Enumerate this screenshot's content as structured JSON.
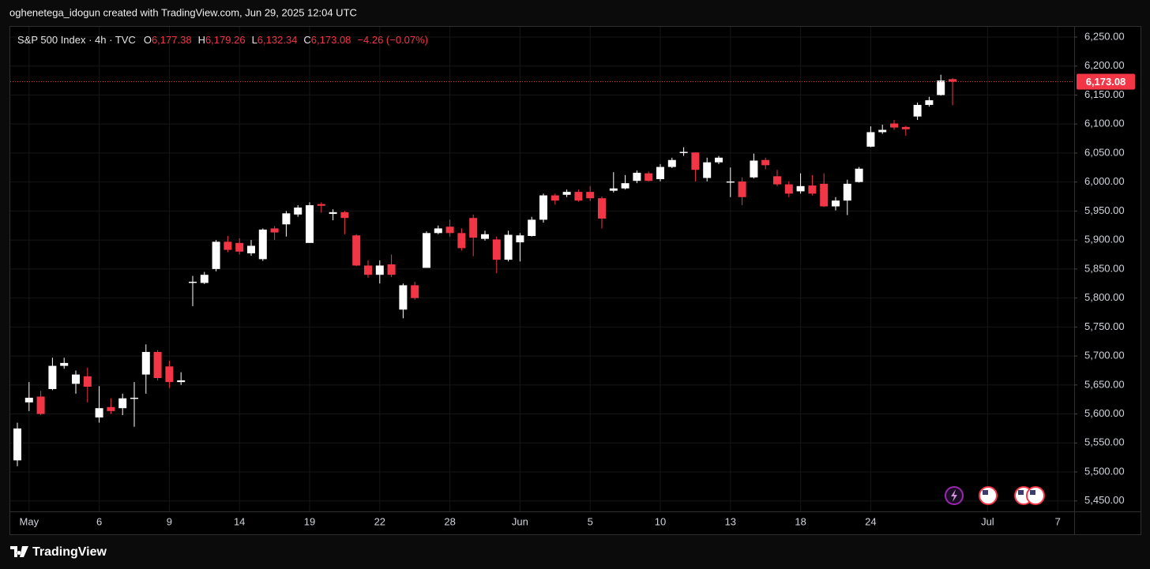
{
  "header": {
    "text": "oghenetega_idogun created with TradingView.com, Jun 29, 2025 12:04 UTC"
  },
  "footer": {
    "brand": "TradingView"
  },
  "chart_data": {
    "type": "candlestick",
    "legend": {
      "symbol": "S&P 500 Index · 4h · TVC",
      "items": [
        {
          "key": "O",
          "value": "6,177.38"
        },
        {
          "key": "H",
          "value": "6,179.26"
        },
        {
          "key": "L",
          "value": "6,132.34"
        },
        {
          "key": "C",
          "value": "6,173.08"
        }
      ],
      "change": "−4.26 (−0.07%)"
    },
    "up_color": "#ffffff",
    "down_color": "#f23645",
    "grid": true,
    "last_price_label": "6,173.08",
    "categories": [
      null,
      "May",
      null,
      null,
      null,
      null,
      null,
      "6",
      null,
      null,
      null,
      null,
      null,
      "9",
      null,
      null,
      null,
      null,
      null,
      "14",
      null,
      null,
      null,
      null,
      null,
      "19",
      null,
      null,
      null,
      null,
      null,
      "22",
      null,
      null,
      null,
      null,
      null,
      "28",
      null,
      null,
      null,
      null,
      null,
      "Jun",
      null,
      null,
      null,
      null,
      null,
      "5",
      null,
      null,
      null,
      null,
      null,
      "10",
      null,
      null,
      null,
      null,
      null,
      "13",
      null,
      null,
      null,
      null,
      null,
      "18",
      null,
      null,
      null,
      null,
      null,
      "24",
      null,
      null,
      null,
      null,
      null,
      null,
      null,
      null,
      null,
      "Jul",
      null,
      null,
      null,
      null,
      null,
      "7"
    ],
    "open": [
      5520,
      5620,
      5630,
      5643,
      5683,
      5652,
      5665,
      5594,
      5612,
      5610,
      5626,
      5668,
      5707,
      5682,
      5655,
      5826,
      5826,
      5850,
      5897,
      5895,
      5877,
      5867,
      5920,
      5927,
      5944,
      5895,
      5962,
      5945,
      5948,
      5908,
      5856,
      5840,
      5858,
      5780,
      5822,
      5852,
      5912,
      5923,
      5912,
      5938,
      5902,
      5901,
      5866,
      5896,
      5907,
      5935,
      5977,
      5978,
      5983,
      5983,
      5972,
      5985,
      5989,
      6002,
      6015,
      6005,
      6026,
      6050,
      6051,
      6007,
      6034,
      5999,
      6001,
      6008,
      6038,
      6010,
      5996,
      5984,
      5994,
      5997,
      5958,
      5968,
      6000,
      6061,
      6086,
      6101,
      6095,
      6113,
      6133,
      6150,
      6177.38,
      null,
      null,
      null,
      null,
      null,
      null,
      null,
      null,
      null
    ],
    "high": [
      5585,
      5655,
      5640,
      5697,
      5697,
      5675,
      5680,
      5648,
      5627,
      5635,
      5655,
      5720,
      5710,
      5692,
      5672,
      5838,
      5845,
      5900,
      5907,
      5903,
      5900,
      5920,
      5924,
      5950,
      5960,
      5965,
      5965,
      5953,
      5950,
      5910,
      5865,
      5865,
      5875,
      5825,
      5828,
      5915,
      5925,
      5935,
      5920,
      5944,
      5916,
      5906,
      5916,
      5912,
      5940,
      5980,
      5980,
      5987,
      5987,
      5993,
      5975,
      6017,
      6012,
      6020,
      6018,
      6031,
      6042,
      6060,
      6051,
      6042,
      6045,
      6025,
      6008,
      6049,
      6042,
      6021,
      6001,
      6015,
      6012,
      6015,
      5974,
      6004,
      6026,
      6096,
      6099,
      6107,
      6097,
      6137,
      6147,
      6185,
      6179.26,
      null,
      null,
      null,
      null,
      null,
      null,
      null,
      null,
      null
    ],
    "low": [
      5510,
      5605,
      5598,
      5641,
      5678,
      5635,
      5620,
      5585,
      5600,
      5598,
      5578,
      5635,
      5658,
      5645,
      5650,
      5786,
      5824,
      5846,
      5879,
      5875,
      5873,
      5864,
      5900,
      5906,
      5940,
      5895,
      5947,
      5934,
      5910,
      5855,
      5835,
      5825,
      5836,
      5765,
      5797,
      5852,
      5910,
      5906,
      5882,
      5872,
      5899,
      5843,
      5863,
      5863,
      5906,
      5930,
      5961,
      5974,
      5966,
      5967,
      5920,
      5982,
      5987,
      5998,
      6001,
      6001,
      6024,
      6045,
      6001,
      6001,
      6031,
      5974,
      5960,
      6006,
      6022,
      5993,
      5974,
      5980,
      5977,
      5957,
      5951,
      5943,
      5999,
      6060,
      6083,
      6090,
      6080,
      6107,
      6130,
      6149,
      6132.34,
      null,
      null,
      null,
      null,
      null,
      null,
      null,
      null,
      null
    ],
    "close": [
      5575,
      5628,
      5600,
      5683,
      5688,
      5668,
      5647,
      5610,
      5605,
      5627,
      5628,
      5707,
      5662,
      5655,
      5658,
      5828,
      5840,
      5897,
      5883,
      5880,
      5890,
      5918,
      5913,
      5946,
      5956,
      5960,
      5959,
      5948,
      5938,
      5856,
      5840,
      5856,
      5840,
      5822,
      5800,
      5912,
      5920,
      5912,
      5886,
      5904,
      5910,
      5866,
      5909,
      5908,
      5935,
      5977,
      5968,
      5983,
      5968,
      5972,
      5937,
      5989,
      5998,
      6016,
      6002,
      6026,
      6038,
      6052,
      6021,
      6034,
      6042,
      6001,
      5974,
      6037,
      6029,
      5996,
      5980,
      5993,
      5980,
      5958,
      5968,
      5997,
      6023,
      6086,
      6090,
      6094,
      6091,
      6133,
      6141,
      6175,
      6173.08,
      null,
      null,
      null,
      null,
      null,
      null,
      null,
      null,
      null
    ],
    "ylim": [
      5432,
      6269
    ],
    "yticks": [
      {
        "value": 5450,
        "label": "5,450.00"
      },
      {
        "value": 5500,
        "label": "5,500.00"
      },
      {
        "value": 5550,
        "label": "5,550.00"
      },
      {
        "value": 5600,
        "label": "5,600.00"
      },
      {
        "value": 5650,
        "label": "5,650.00"
      },
      {
        "value": 5700,
        "label": "5,700.00"
      },
      {
        "value": 5750,
        "label": "5,750.00"
      },
      {
        "value": 5800,
        "label": "5,800.00"
      },
      {
        "value": 5850,
        "label": "5,850.00"
      },
      {
        "value": 5900,
        "label": "5,900.00"
      },
      {
        "value": 5950,
        "label": "5,950.00"
      },
      {
        "value": 6000,
        "label": "6,000.00"
      },
      {
        "value": 6050,
        "label": "6,050.00"
      },
      {
        "value": 6100,
        "label": "6,100.00"
      },
      {
        "value": 6150,
        "label": "6,150.00"
      },
      {
        "value": 6200,
        "label": "6,200.00"
      },
      {
        "value": 6250,
        "label": "6,250.00"
      }
    ]
  }
}
